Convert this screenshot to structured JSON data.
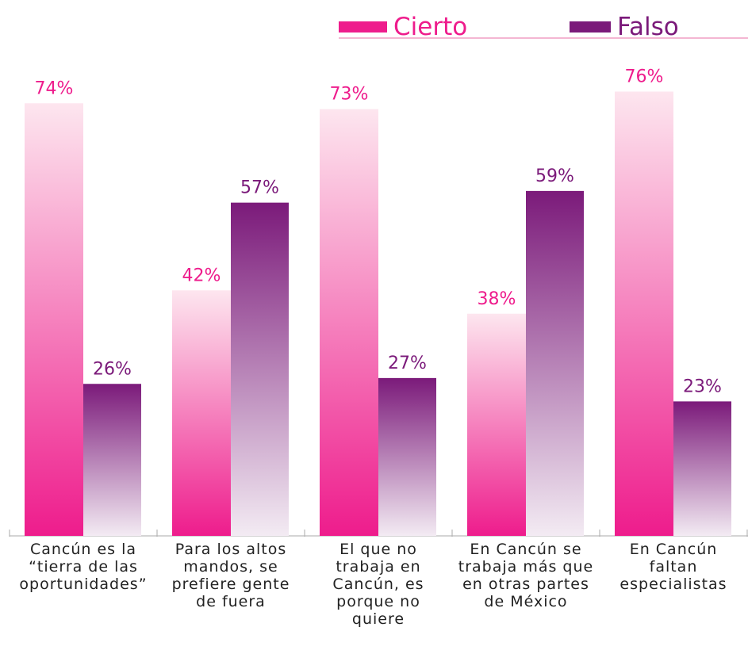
{
  "chart_data": {
    "type": "bar",
    "categories": [
      "Cancún es la\n“tierra de las\noportunidades”",
      "Para los altos\nmandos, se\nprefiere gente\nde fuera",
      "El que no\ntrabaja en\nCancún, es\nporque no\nquiere",
      "En Cancún se\ntrabaja más que\nen otras partes\nde México",
      "En Cancún\nfaltan\nespecialistas"
    ],
    "series": [
      {
        "name": "Cierto",
        "color": "#ee1c8c",
        "values": [
          74,
          42,
          73,
          38,
          76
        ],
        "value_labels": [
          "74%",
          "42%",
          "73%",
          "38%",
          "76%"
        ]
      },
      {
        "name": "Falso",
        "color": "#7b1a7a",
        "values": [
          26,
          57,
          27,
          59,
          23
        ],
        "value_labels": [
          "26%",
          "57%",
          "27%",
          "59%",
          "23%"
        ]
      }
    ],
    "ylim": [
      0,
      80
    ]
  }
}
